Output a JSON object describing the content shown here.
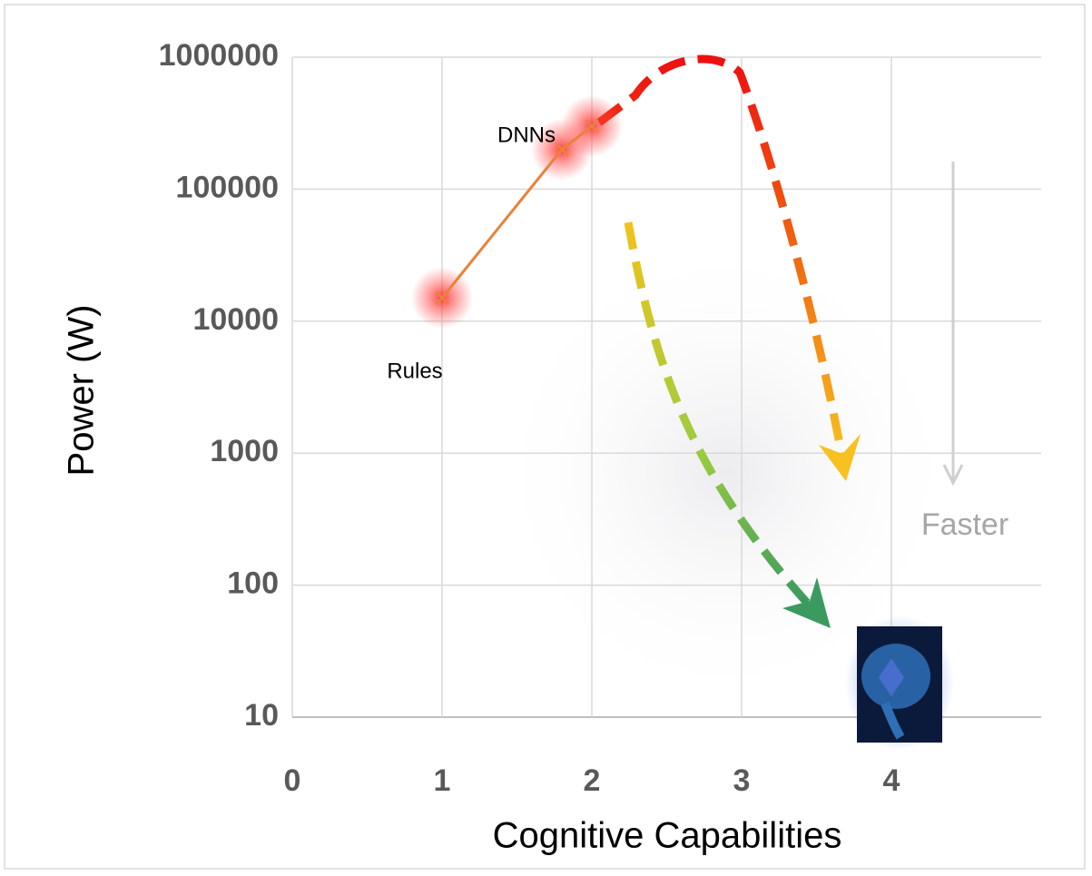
{
  "chart_data": {
    "type": "line",
    "x_label": "Cognitive Capabilities",
    "y_label": "Power (W)",
    "xlim": [
      0,
      5
    ],
    "xticks": [
      0,
      1,
      2,
      3,
      4
    ],
    "ylim": [
      10,
      1000000
    ],
    "yticks": [
      10,
      100,
      1000,
      10000,
      100000,
      1000000
    ],
    "log_y": true,
    "grid": true,
    "series": [
      {
        "color": "#e8823a",
        "x": [
          1,
          1.8,
          2
        ],
        "values": [
          15000,
          200000,
          300000
        ]
      },
      {
        "color": "#4a6fd1",
        "x": [
          4
        ],
        "values": [
          20
        ]
      }
    ],
    "annotations": [
      "Rules",
      "DNNs",
      "Faster"
    ]
  }
}
